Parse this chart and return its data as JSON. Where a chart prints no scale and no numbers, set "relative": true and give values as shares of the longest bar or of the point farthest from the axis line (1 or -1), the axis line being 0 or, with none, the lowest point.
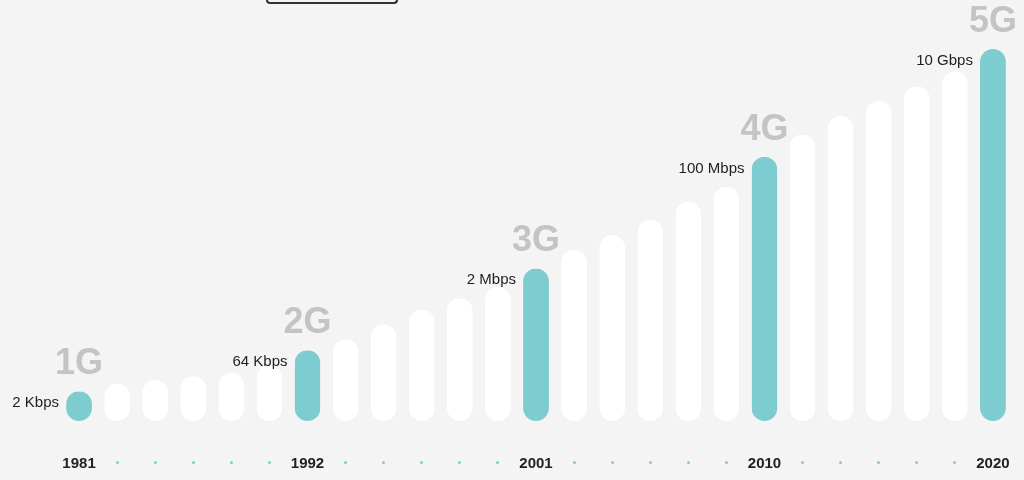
{
  "chart_data": {
    "type": "bar",
    "relative": true,
    "categories": [
      "1981",
      null,
      null,
      null,
      null,
      null,
      "1992",
      null,
      null,
      null,
      null,
      null,
      "2001",
      null,
      null,
      null,
      null,
      null,
      "2010",
      null,
      null,
      null,
      null,
      null,
      "2020"
    ],
    "values": [
      0.08,
      0.1,
      0.11,
      0.12,
      0.13,
      0.15,
      0.19,
      0.22,
      0.26,
      0.3,
      0.33,
      0.36,
      0.41,
      0.46,
      0.5,
      0.54,
      0.59,
      0.63,
      0.71,
      0.77,
      0.82,
      0.86,
      0.9,
      0.94,
      1
    ],
    "colors": [
      "#7dcdd0",
      "#ffffff",
      "#ffffff",
      "#ffffff",
      "#ffffff",
      "#ffffff",
      "#7dcdd0",
      "#ffffff",
      "#ffffff",
      "#ffffff",
      "#ffffff",
      "#ffffff",
      "#7dcdd0",
      "#ffffff",
      "#ffffff",
      "#ffffff",
      "#ffffff",
      "#ffffff",
      "#7dcdd0",
      "#ffffff",
      "#ffffff",
      "#ffffff",
      "#ffffff",
      "#ffffff",
      "#7dcdd0"
    ],
    "annotations": [
      {
        "text": "1G",
        "x": "1981",
        "y": 0.08
      },
      {
        "text": "2 Kbps",
        "x": "1981",
        "y": 0.08
      },
      {
        "text": "2G",
        "x": "1992",
        "y": 0.19
      },
      {
        "text": "64 Kbps",
        "x": "1992",
        "y": 0.19
      },
      {
        "text": "3G",
        "x": "2001",
        "y": 0.41
      },
      {
        "text": "2 Mbps",
        "x": "2001",
        "y": 0.41
      },
      {
        "text": "4G",
        "x": "2010",
        "y": 0.71
      },
      {
        "text": "100 Mbps",
        "x": "2010",
        "y": 0.71
      },
      {
        "text": "5G",
        "x": "2020",
        "y": 1
      },
      {
        "text": "10 Gbps",
        "x": "2020",
        "y": 1
      }
    ]
  }
}
